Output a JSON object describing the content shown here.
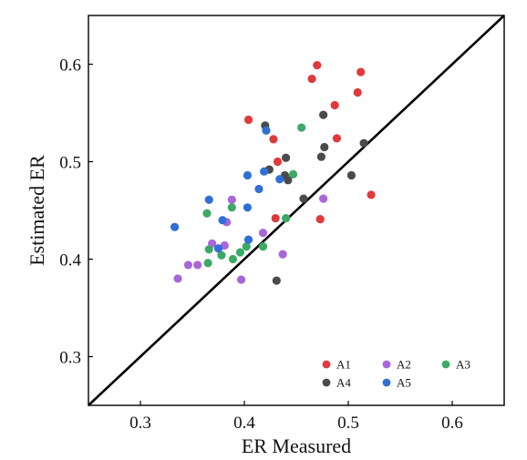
{
  "chart_data": {
    "type": "scatter",
    "title": "",
    "xlabel": "ER Measured",
    "ylabel": "Estimated ER",
    "xlim": [
      0.25,
      0.65
    ],
    "ylim": [
      0.25,
      0.65
    ],
    "xticks": [
      0.3,
      0.4,
      0.5,
      0.6
    ],
    "yticks": [
      0.3,
      0.4,
      0.5,
      0.6
    ],
    "xtick_labels": [
      "0.3",
      "0.4",
      "0.5",
      "0.6"
    ],
    "ytick_labels": [
      "0.3",
      "0.4",
      "0.5",
      "0.6"
    ],
    "grid": false,
    "reference_line": "y = x",
    "legend_position": "bottom-right",
    "series": [
      {
        "name": "A1",
        "color": "#e0393e",
        "points": [
          [
            0.47,
            0.599
          ],
          [
            0.512,
            0.592
          ],
          [
            0.465,
            0.585
          ],
          [
            0.509,
            0.571
          ],
          [
            0.487,
            0.558
          ],
          [
            0.404,
            0.543
          ],
          [
            0.489,
            0.524
          ],
          [
            0.428,
            0.523
          ],
          [
            0.432,
            0.5
          ],
          [
            0.522,
            0.466
          ],
          [
            0.43,
            0.442
          ],
          [
            0.473,
            0.441
          ]
        ]
      },
      {
        "name": "A2",
        "color": "#a866d8",
        "points": [
          [
            0.388,
            0.461
          ],
          [
            0.476,
            0.462
          ],
          [
            0.383,
            0.438
          ],
          [
            0.418,
            0.427
          ],
          [
            0.369,
            0.416
          ],
          [
            0.381,
            0.414
          ],
          [
            0.437,
            0.405
          ],
          [
            0.346,
            0.394
          ],
          [
            0.355,
            0.394
          ],
          [
            0.336,
            0.38
          ],
          [
            0.397,
            0.379
          ]
        ]
      },
      {
        "name": "A3",
        "color": "#3aaa66",
        "points": [
          [
            0.455,
            0.535
          ],
          [
            0.447,
            0.487
          ],
          [
            0.388,
            0.453
          ],
          [
            0.364,
            0.447
          ],
          [
            0.44,
            0.442
          ],
          [
            0.418,
            0.413
          ],
          [
            0.402,
            0.413
          ],
          [
            0.366,
            0.41
          ],
          [
            0.396,
            0.407
          ],
          [
            0.378,
            0.404
          ],
          [
            0.389,
            0.4
          ],
          [
            0.365,
            0.396
          ]
        ]
      },
      {
        "name": "A4",
        "color": "#4a4a4a",
        "points": [
          [
            0.42,
            0.537
          ],
          [
            0.476,
            0.548
          ],
          [
            0.515,
            0.519
          ],
          [
            0.477,
            0.515
          ],
          [
            0.474,
            0.505
          ],
          [
            0.44,
            0.504
          ],
          [
            0.424,
            0.492
          ],
          [
            0.439,
            0.486
          ],
          [
            0.442,
            0.481
          ],
          [
            0.503,
            0.486
          ],
          [
            0.457,
            0.462
          ],
          [
            0.431,
            0.378
          ]
        ]
      },
      {
        "name": "A5",
        "color": "#2f6fd6",
        "points": [
          [
            0.421,
            0.532
          ],
          [
            0.419,
            0.49
          ],
          [
            0.403,
            0.486
          ],
          [
            0.434,
            0.482
          ],
          [
            0.414,
            0.472
          ],
          [
            0.366,
            0.461
          ],
          [
            0.403,
            0.453
          ],
          [
            0.379,
            0.44
          ],
          [
            0.333,
            0.433
          ],
          [
            0.404,
            0.42
          ],
          [
            0.375,
            0.411
          ]
        ]
      }
    ]
  }
}
